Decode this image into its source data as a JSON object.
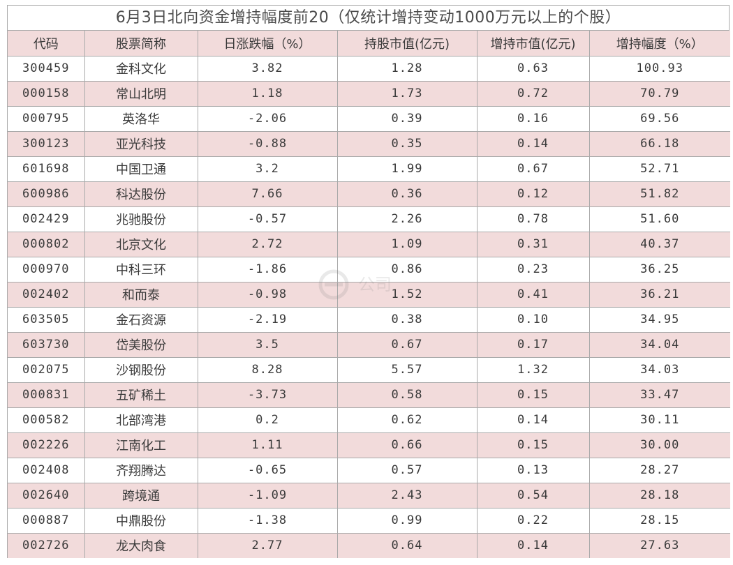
{
  "title": "6月3日北向资金增持幅度前20（仅统计增持变动1000万元以上的个股）",
  "headers": [
    "代码",
    "股票简称",
    "日涨跌幅（%）",
    "持股市值(亿元)",
    "增持市值(亿元)",
    "增持幅度（%）"
  ],
  "rows": [
    [
      "300459",
      "金科文化",
      "3.82",
      "1.28",
      "0.63",
      "100.93"
    ],
    [
      "000158",
      "常山北明",
      "1.18",
      "1.73",
      "0.72",
      "70.79"
    ],
    [
      "000795",
      "英洛华",
      "-2.06",
      "0.39",
      "0.16",
      "69.56"
    ],
    [
      "300123",
      "亚光科技",
      "-0.88",
      "0.35",
      "0.14",
      "66.18"
    ],
    [
      "601698",
      "中国卫通",
      "3.2",
      "1.99",
      "0.67",
      "52.71"
    ],
    [
      "600986",
      "科达股份",
      "7.66",
      "0.36",
      "0.12",
      "51.82"
    ],
    [
      "002429",
      "兆驰股份",
      "-0.57",
      "2.26",
      "0.78",
      "51.60"
    ],
    [
      "000802",
      "北京文化",
      "2.72",
      "1.09",
      "0.31",
      "40.37"
    ],
    [
      "000970",
      "中科三环",
      "-1.86",
      "0.86",
      "0.23",
      "36.25"
    ],
    [
      "002402",
      "和而泰",
      "-0.98",
      "1.52",
      "0.41",
      "36.21"
    ],
    [
      "603505",
      "金石资源",
      "-2.19",
      "0.38",
      "0.10",
      "34.95"
    ],
    [
      "603730",
      "岱美股份",
      "3.5",
      "0.67",
      "0.17",
      "34.04"
    ],
    [
      "002075",
      "沙钢股份",
      "8.28",
      "5.57",
      "1.32",
      "34.03"
    ],
    [
      "000831",
      "五矿稀土",
      "-3.73",
      "0.58",
      "0.15",
      "33.47"
    ],
    [
      "000582",
      "北部湾港",
      "0.2",
      "0.62",
      "0.14",
      "30.11"
    ],
    [
      "002226",
      "江南化工",
      "1.11",
      "0.66",
      "0.15",
      "30.00"
    ],
    [
      "002408",
      "齐翔腾达",
      "-0.65",
      "0.57",
      "0.13",
      "28.27"
    ],
    [
      "002640",
      "跨境通",
      "-1.09",
      "2.43",
      "0.54",
      "28.18"
    ],
    [
      "000887",
      "中鼎股份",
      "-1.38",
      "0.99",
      "0.22",
      "28.15"
    ],
    [
      "002726",
      "龙大肉食",
      "2.77",
      "0.64",
      "0.14",
      "27.63"
    ]
  ],
  "colors": {
    "stripe": "#f2dbdb",
    "border": "#a9a9a9",
    "text": "#3a3a3a"
  },
  "watermark": {
    "icon": "logo-icon",
    "text": "公司"
  }
}
